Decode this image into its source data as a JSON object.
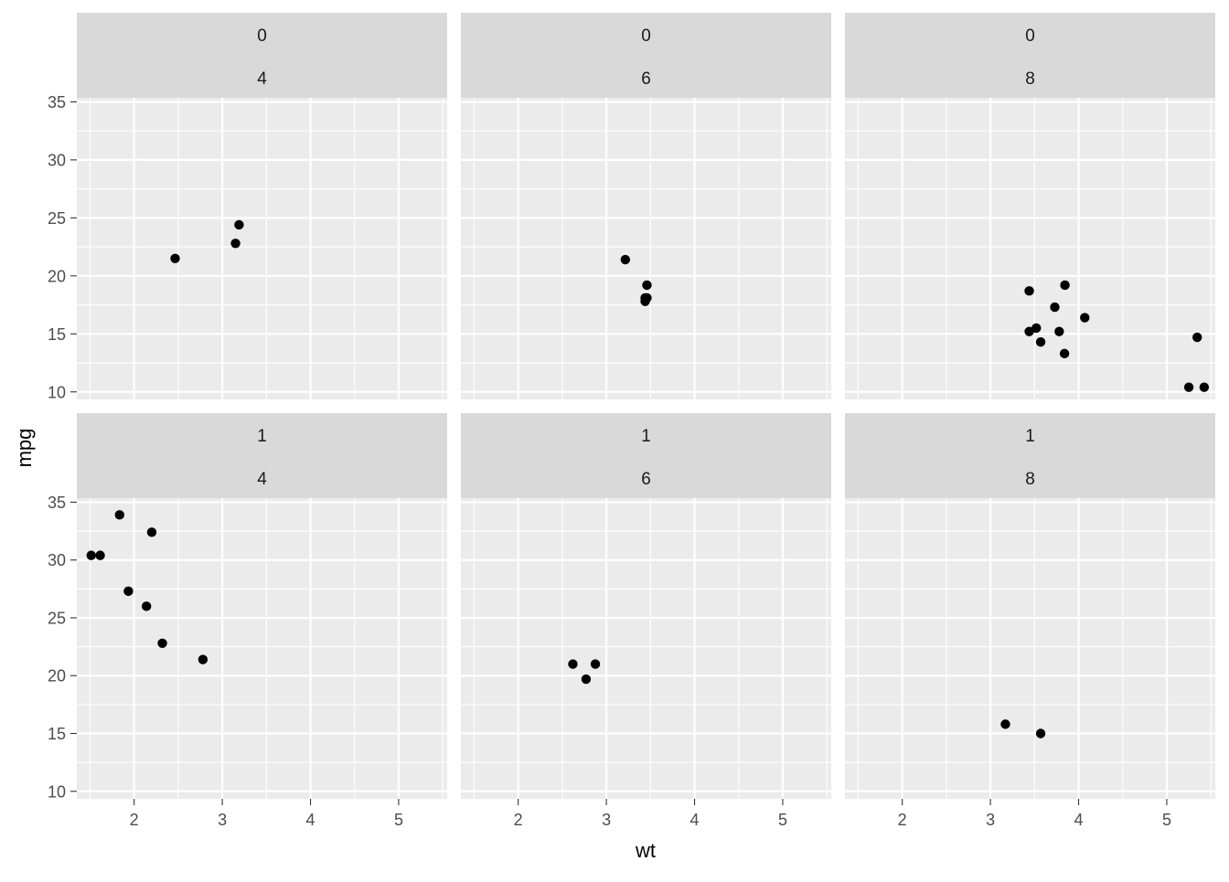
{
  "chart_data": {
    "type": "scatter",
    "xlabel": "wt",
    "ylabel": "mpg",
    "xlim": [
      1.35,
      5.55
    ],
    "ylim": [
      9.35,
      35.35
    ],
    "x_ticks": [
      2,
      3,
      4,
      5
    ],
    "y_ticks": [
      10,
      15,
      20,
      25,
      30,
      35
    ],
    "grid": true,
    "colors": {
      "panel_background": "#ebebeb",
      "strip_background": "#d9d9d9",
      "grid": "#ffffff",
      "point": "#000000"
    },
    "panels": [
      {
        "strip": [
          "0",
          "4"
        ],
        "points": [
          [
            2.465,
            21.5
          ],
          [
            3.15,
            22.8
          ],
          [
            3.19,
            24.4
          ]
        ]
      },
      {
        "strip": [
          "0",
          "6"
        ],
        "points": [
          [
            3.215,
            21.4
          ],
          [
            3.44,
            18.1
          ],
          [
            3.44,
            17.8
          ],
          [
            3.46,
            19.2
          ],
          [
            3.46,
            18.1
          ]
        ]
      },
      {
        "strip": [
          "0",
          "8"
        ],
        "points": [
          [
            3.44,
            18.7
          ],
          [
            3.44,
            15.2
          ],
          [
            3.52,
            15.5
          ],
          [
            3.57,
            14.3
          ],
          [
            3.73,
            17.3
          ],
          [
            3.78,
            15.2
          ],
          [
            3.84,
            13.3
          ],
          [
            3.845,
            19.2
          ],
          [
            4.07,
            16.4
          ],
          [
            5.25,
            10.4
          ],
          [
            5.345,
            14.7
          ],
          [
            5.424,
            10.4
          ]
        ]
      },
      {
        "strip": [
          "1",
          "4"
        ],
        "points": [
          [
            1.513,
            30.4
          ],
          [
            1.615,
            30.4
          ],
          [
            1.835,
            33.9
          ],
          [
            1.935,
            27.3
          ],
          [
            2.14,
            26.0
          ],
          [
            2.2,
            32.4
          ],
          [
            2.32,
            22.8
          ],
          [
            2.78,
            21.4
          ]
        ]
      },
      {
        "strip": [
          "1",
          "6"
        ],
        "points": [
          [
            2.62,
            21.0
          ],
          [
            2.77,
            19.7
          ],
          [
            2.875,
            21.0
          ]
        ]
      },
      {
        "strip": [
          "1",
          "8"
        ],
        "points": [
          [
            3.17,
            15.8
          ],
          [
            3.57,
            15.0
          ]
        ]
      }
    ]
  }
}
